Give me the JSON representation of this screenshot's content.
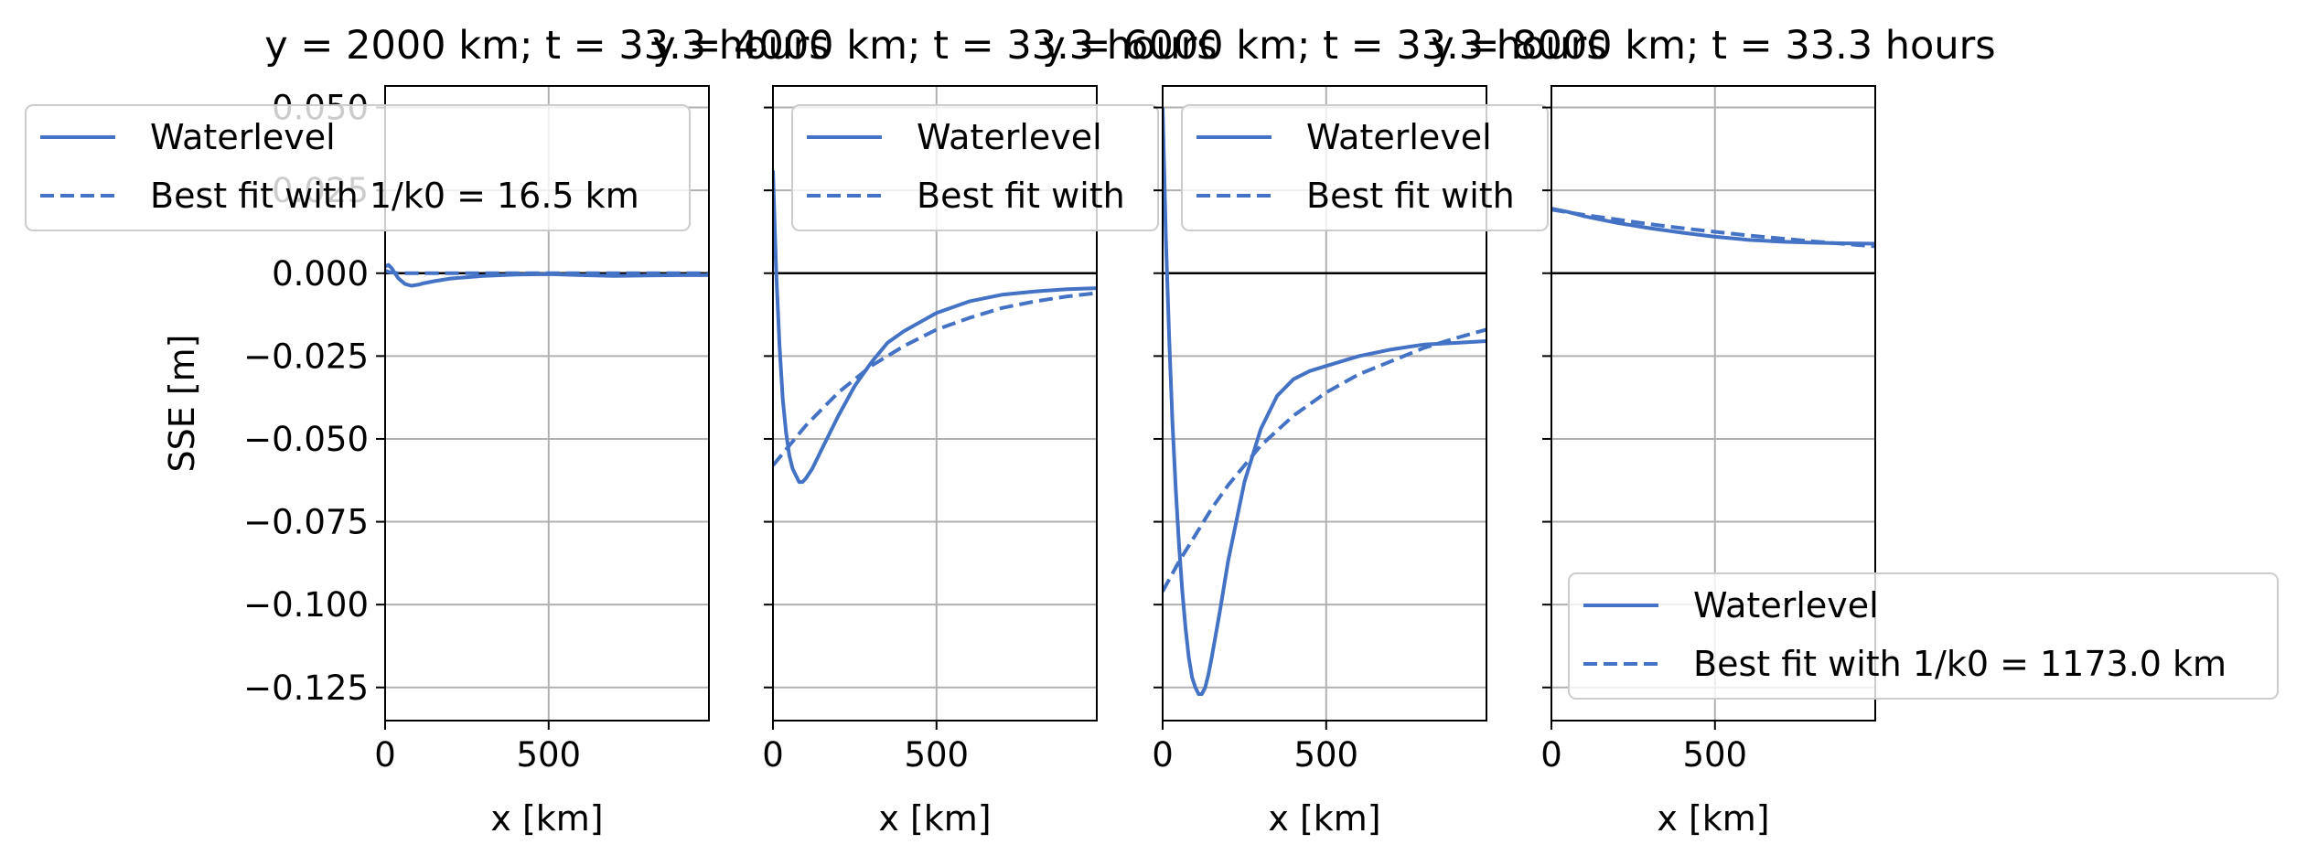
{
  "figure": {
    "line_color": "#4472c4",
    "zero_line_color": "#000000",
    "grid_color": "#b0b0b0"
  },
  "chart_data": [
    {
      "type": "line",
      "title": "y = 2000 km; t = 33.3 hours",
      "xlabel": "x [km]",
      "ylabel": "SSE [m]",
      "xlim": [
        0,
        990
      ],
      "ylim": [
        -0.135,
        0.0565
      ],
      "xticks": [
        0,
        500
      ],
      "yticks": [
        -0.125,
        -0.1,
        -0.075,
        -0.05,
        -0.025,
        0.0,
        0.025,
        0.05
      ],
      "ytick_labels": [
        "−0.125",
        "−0.100",
        "−0.075",
        "−0.050",
        "−0.025",
        "0.000",
        "0.025",
        "0.050"
      ],
      "grid": true,
      "legend": {
        "placement": "upper-left",
        "entries": [
          "Waterlevel",
          "Best fit with 1/k0 = 16.5 km"
        ]
      },
      "series": [
        {
          "name": "Waterlevel",
          "style": "solid",
          "x": [
            0,
            10,
            20,
            40,
            60,
            80,
            100,
            120,
            150,
            200,
            300,
            400,
            500,
            600,
            700,
            800,
            900,
            990
          ],
          "y": [
            0.002,
            0.0025,
            0.0015,
            -0.0015,
            -0.0032,
            -0.0038,
            -0.0035,
            -0.003,
            -0.0024,
            -0.0016,
            -0.0008,
            -0.0004,
            -0.0003,
            -0.0006,
            -0.0008,
            -0.0007,
            -0.0006,
            -0.0006
          ]
        },
        {
          "name": "Best fit with 1/k0 = 16.5 km",
          "style": "dashed",
          "x": [
            0,
            10,
            20,
            40,
            80,
            200,
            500,
            990
          ],
          "y": [
            0.0008,
            0.0004,
            0.0002,
            0.0,
            0.0,
            0.0,
            0.0,
            0.0
          ]
        }
      ]
    },
    {
      "type": "line",
      "title": "y = 4000 km; t = 33.3 hours",
      "xlabel": "x [km]",
      "xlim": [
        0,
        990
      ],
      "ylim": [
        -0.135,
        0.0565
      ],
      "xticks": [
        0,
        500
      ],
      "grid": true,
      "legend": {
        "placement": "upper-left",
        "entries": [
          "Waterlevel",
          "Best fit with"
        ]
      },
      "series": [
        {
          "name": "Waterlevel",
          "style": "solid",
          "x": [
            0,
            5,
            10,
            20,
            30,
            40,
            50,
            60,
            70,
            80,
            90,
            100,
            120,
            150,
            200,
            250,
            300,
            350,
            400,
            500,
            600,
            700,
            800,
            900,
            990
          ],
          "y": [
            0.031,
            0.015,
            0.0,
            -0.022,
            -0.038,
            -0.048,
            -0.055,
            -0.059,
            -0.061,
            -0.063,
            -0.063,
            -0.062,
            -0.059,
            -0.053,
            -0.043,
            -0.034,
            -0.027,
            -0.021,
            -0.0175,
            -0.012,
            -0.0085,
            -0.0065,
            -0.0055,
            -0.0048,
            -0.0045
          ]
        },
        {
          "name": "Best fit with",
          "style": "dashed",
          "x": [
            0,
            50,
            100,
            150,
            200,
            300,
            400,
            500,
            600,
            700,
            800,
            900,
            990
          ],
          "y": [
            -0.058,
            -0.052,
            -0.046,
            -0.041,
            -0.036,
            -0.028,
            -0.022,
            -0.017,
            -0.0135,
            -0.0105,
            -0.0085,
            -0.007,
            -0.006
          ]
        }
      ]
    },
    {
      "type": "line",
      "title": "y = 6000 km; t = 33.3 hours",
      "xlabel": "x [km]",
      "xlim": [
        0,
        990
      ],
      "ylim": [
        -0.135,
        0.0565
      ],
      "xticks": [
        0,
        500
      ],
      "grid": true,
      "legend": {
        "placement": "upper-left",
        "entries": [
          "Waterlevel",
          "Best fit with"
        ]
      },
      "series": [
        {
          "name": "Waterlevel",
          "style": "solid",
          "x": [
            0,
            5,
            10,
            20,
            30,
            40,
            50,
            60,
            70,
            80,
            90,
            100,
            110,
            120,
            130,
            140,
            150,
            175,
            200,
            250,
            300,
            350,
            400,
            450,
            500,
            600,
            700,
            800,
            900,
            990
          ],
          "y": [
            0.05,
            0.03,
            0.01,
            -0.02,
            -0.045,
            -0.065,
            -0.082,
            -0.096,
            -0.107,
            -0.116,
            -0.122,
            -0.125,
            -0.127,
            -0.127,
            -0.125,
            -0.121,
            -0.116,
            -0.102,
            -0.087,
            -0.063,
            -0.047,
            -0.037,
            -0.032,
            -0.0295,
            -0.028,
            -0.025,
            -0.023,
            -0.0215,
            -0.021,
            -0.0205
          ]
        },
        {
          "name": "Best fit with",
          "style": "dashed",
          "x": [
            0,
            50,
            100,
            150,
            200,
            250,
            300,
            400,
            500,
            600,
            700,
            800,
            900,
            990
          ],
          "y": [
            -0.096,
            -0.087,
            -0.079,
            -0.071,
            -0.064,
            -0.058,
            -0.052,
            -0.043,
            -0.036,
            -0.0305,
            -0.0265,
            -0.0225,
            -0.0195,
            -0.017
          ]
        }
      ]
    },
    {
      "type": "line",
      "title": "y = 8000 km; t = 33.3 hours",
      "xlabel": "x [km]",
      "xlim": [
        0,
        990
      ],
      "ylim": [
        -0.135,
        0.0565
      ],
      "xticks": [
        0,
        500
      ],
      "grid": true,
      "legend": {
        "placement": "lower-right",
        "entries": [
          "Waterlevel",
          "Best fit with 1/k0 = 1173.0 km"
        ]
      },
      "series": [
        {
          "name": "Waterlevel",
          "style": "solid",
          "x": [
            0,
            50,
            100,
            200,
            300,
            400,
            500,
            600,
            700,
            800,
            900,
            990
          ],
          "y": [
            0.0195,
            0.0185,
            0.0172,
            0.0152,
            0.0136,
            0.0122,
            0.011,
            0.0101,
            0.0095,
            0.0092,
            0.009,
            0.0089
          ]
        },
        {
          "name": "Best fit with 1/k0 = 1173.0 km",
          "style": "dashed",
          "x": [
            0,
            100,
            200,
            300,
            400,
            500,
            600,
            700,
            800,
            900,
            990
          ],
          "y": [
            0.0192,
            0.0176,
            0.0162,
            0.0148,
            0.0136,
            0.0125,
            0.0114,
            0.0105,
            0.0096,
            0.0088,
            0.0081
          ]
        }
      ]
    }
  ]
}
